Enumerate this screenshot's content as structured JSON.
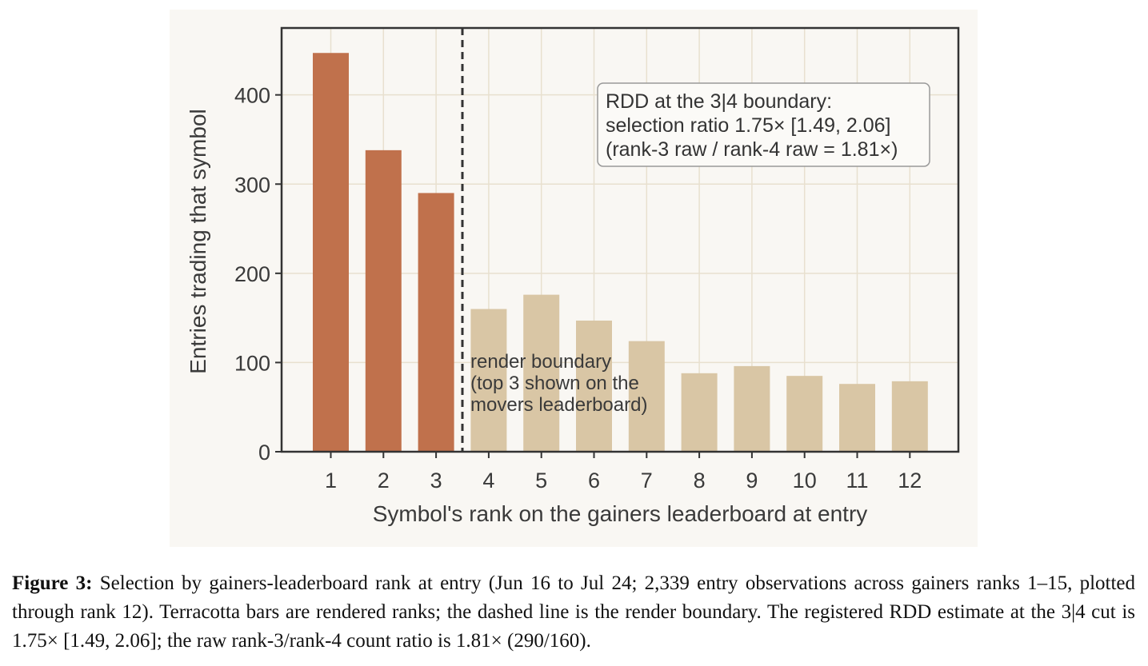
{
  "caption": {
    "label": "Figure 3:",
    "text": "Selection by gainers-leaderboard rank at entry (Jun 16 to Jul 24; 2,339 entry observations across gainers ranks 1–15, plotted through rank 12). Terracotta bars are rendered ranks; the dashed line is the render boundary. The registered RDD estimate at the 3|4 cut is 1.75× [1.49, 2.06]; the raw rank-3/rank-4 count ratio is 1.81× (290/160)."
  },
  "colors": {
    "rendered": "#c0714c",
    "not_rendered": "#d9c6a5",
    "grid": "#e8e0cf",
    "axis": "#333333",
    "boundary": "#333333"
  },
  "chart_data": {
    "type": "bar",
    "title": "",
    "xlabel": "Symbol's rank on the gainers leaderboard at entry",
    "ylabel": "Entries trading that symbol",
    "categories": [
      "1",
      "2",
      "3",
      "4",
      "5",
      "6",
      "7",
      "8",
      "9",
      "10",
      "11",
      "12"
    ],
    "values": [
      447,
      338,
      290,
      160,
      176,
      147,
      124,
      88,
      96,
      85,
      76,
      79
    ],
    "rendered_ranks": 3,
    "ylim": [
      0,
      475
    ],
    "yticks": [
      0,
      100,
      200,
      300,
      400
    ],
    "grid": true,
    "boundary_line": {
      "between": [
        3,
        4
      ],
      "style": "dashed"
    },
    "annotations": {
      "boundary_lines": [
        "render boundary",
        "(top 3 shown on the",
        "movers leaderboard)"
      ],
      "box_lines": [
        "RDD at the 3|4 boundary:",
        "selection ratio 1.75× [1.49, 2.06]",
        "(rank-3 raw / rank-4 raw = 1.81×)"
      ]
    }
  }
}
